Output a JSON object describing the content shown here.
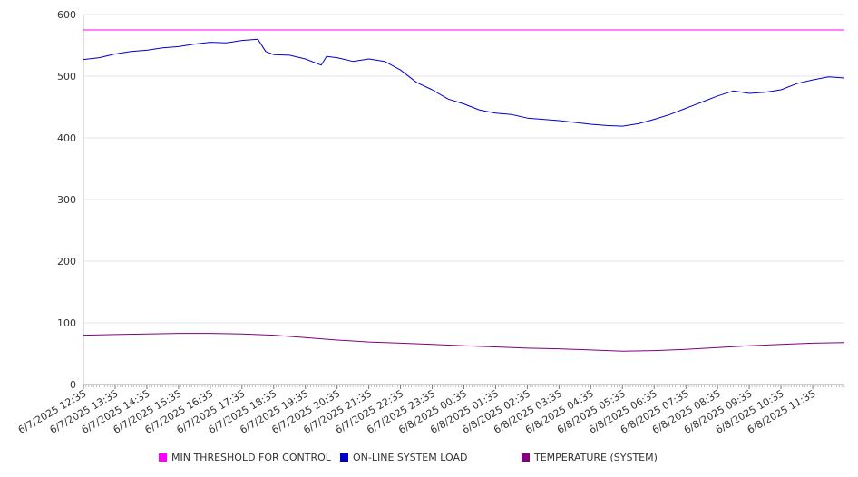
{
  "chart_data": {
    "type": "line",
    "title": "",
    "xlabel": "",
    "ylabel": "",
    "ylim": [
      0,
      600
    ],
    "yticks": [
      0,
      100,
      200,
      300,
      400,
      500,
      600
    ],
    "x_tick_labels": [
      "6/7/2025 12:35",
      "6/7/2025 13:35",
      "6/7/2025 14:35",
      "6/7/2025 15:35",
      "6/7/2025 16:35",
      "6/7/2025 17:35",
      "6/7/2025 18:35",
      "6/7/2025 19:35",
      "6/7/2025 20:35",
      "6/7/2025 21:35",
      "6/7/2025 22:35",
      "6/7/2025 23:35",
      "6/8/2025 00:35",
      "6/8/2025 01:35",
      "6/8/2025 02:35",
      "6/8/2025 03:35",
      "6/8/2025 04:35",
      "6/8/2025 05:35",
      "6/8/2025 06:35",
      "6/8/2025 07:35",
      "6/8/2025 08:35",
      "6/8/2025 09:35",
      "6/8/2025 10:35",
      "6/8/2025 11:35"
    ],
    "grid": true,
    "legend_position": "bottom",
    "series": [
      {
        "name": "MIN THRESHOLD FOR CONTROL",
        "color": "#ff00ff",
        "x": [
          "6/7/2025 12:35",
          "6/8/2025 12:35"
        ],
        "y": [
          575,
          575
        ]
      },
      {
        "name": "ON-LINE SYSTEM LOAD",
        "color": "#0000cc",
        "x": [
          "6/7/2025 12:35",
          "6/7/2025 13:05",
          "6/7/2025 13:35",
          "6/7/2025 14:05",
          "6/7/2025 14:35",
          "6/7/2025 15:05",
          "6/7/2025 15:35",
          "6/7/2025 16:05",
          "6/7/2025 16:35",
          "6/7/2025 17:05",
          "6/7/2025 17:35",
          "6/7/2025 18:05",
          "6/7/2025 18:20",
          "6/7/2025 18:35",
          "6/7/2025 19:05",
          "6/7/2025 19:35",
          "6/7/2025 20:05",
          "6/7/2025 20:15",
          "6/7/2025 20:35",
          "6/7/2025 21:05",
          "6/7/2025 21:35",
          "6/7/2025 22:05",
          "6/7/2025 22:35",
          "6/7/2025 23:05",
          "6/7/2025 23:35",
          "6/8/2025 00:05",
          "6/8/2025 00:35",
          "6/8/2025 01:05",
          "6/8/2025 01:35",
          "6/8/2025 02:05",
          "6/8/2025 02:35",
          "6/8/2025 03:05",
          "6/8/2025 03:35",
          "6/8/2025 04:05",
          "6/8/2025 04:35",
          "6/8/2025 05:05",
          "6/8/2025 05:35",
          "6/8/2025 06:05",
          "6/8/2025 06:35",
          "6/8/2025 07:05",
          "6/8/2025 07:35",
          "6/8/2025 08:05",
          "6/8/2025 08:35",
          "6/8/2025 09:05",
          "6/8/2025 09:35",
          "6/8/2025 10:05",
          "6/8/2025 10:35",
          "6/8/2025 11:05",
          "6/8/2025 11:35",
          "6/8/2025 12:05",
          "6/8/2025 12:35"
        ],
        "y": [
          527,
          530,
          536,
          540,
          542,
          546,
          548,
          552,
          555,
          554,
          558,
          560,
          540,
          535,
          534,
          528,
          518,
          532,
          530,
          524,
          528,
          524,
          510,
          490,
          478,
          463,
          455,
          445,
          440,
          438,
          432,
          430,
          428,
          425,
          422,
          420,
          419,
          423,
          430,
          438,
          448,
          458,
          468,
          476,
          472,
          474,
          478,
          488,
          494,
          499,
          497
        ]
      },
      {
        "name": "TEMPERATURE (SYSTEM)",
        "color": "#800080",
        "x": [
          "6/7/2025 12:35",
          "6/7/2025 13:35",
          "6/7/2025 14:35",
          "6/7/2025 15:35",
          "6/7/2025 16:35",
          "6/7/2025 17:35",
          "6/7/2025 18:35",
          "6/7/2025 19:35",
          "6/7/2025 20:35",
          "6/7/2025 21:35",
          "6/7/2025 22:35",
          "6/7/2025 23:35",
          "6/8/2025 00:35",
          "6/8/2025 01:35",
          "6/8/2025 02:35",
          "6/8/2025 03:35",
          "6/8/2025 04:35",
          "6/8/2025 05:35",
          "6/8/2025 06:35",
          "6/8/2025 07:35",
          "6/8/2025 08:35",
          "6/8/2025 09:35",
          "6/8/2025 10:35",
          "6/8/2025 11:35",
          "6/8/2025 12:35"
        ],
        "y": [
          80,
          81,
          82,
          83,
          83,
          82,
          80,
          76,
          72,
          69,
          67,
          65,
          63,
          61,
          59,
          58,
          56,
          54,
          55,
          57,
          60,
          63,
          65,
          67,
          68
        ]
      }
    ]
  }
}
